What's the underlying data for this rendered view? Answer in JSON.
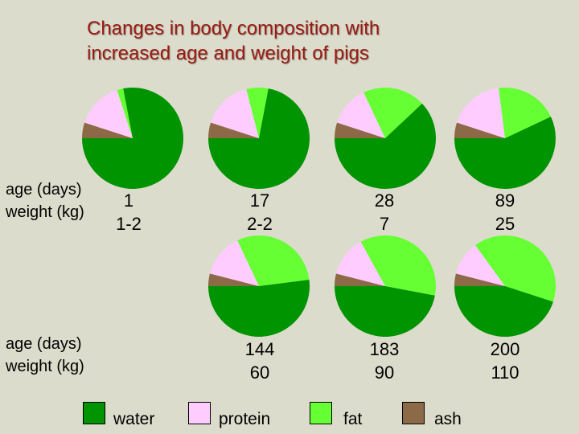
{
  "title": {
    "line1": "Changes in body composition with",
    "line2": "increased age and weight of pigs"
  },
  "row_labels": {
    "age": "age (days)",
    "weight": "weight (kg)"
  },
  "colors": {
    "water": "#009400",
    "protein": "#ffccff",
    "fat": "#66ff33",
    "ash": "#8c6a48",
    "title": "#9b1a12",
    "background": "#dcdccc"
  },
  "chart_data": {
    "type": "pie",
    "title": "Changes in body composition with increased age and weight of pigs",
    "legend": [
      "water",
      "protein",
      "fat",
      "ash"
    ],
    "legend_position": "bottom",
    "pies": [
      {
        "age_days": "1",
        "weight_kg": "1-2",
        "water": 0.78,
        "protein": 0.15,
        "fat": 0.02,
        "ash": 0.05
      },
      {
        "age_days": "17",
        "weight_kg": "2-2",
        "water": 0.72,
        "protein": 0.16,
        "fat": 0.07,
        "ash": 0.05
      },
      {
        "age_days": "28",
        "weight_kg": "7",
        "water": 0.62,
        "protein": 0.13,
        "fat": 0.2,
        "ash": 0.05
      },
      {
        "age_days": "89",
        "weight_kg": "25",
        "water": 0.57,
        "protein": 0.18,
        "fat": 0.2,
        "ash": 0.05
      },
      {
        "age_days": "144",
        "weight_kg": "60",
        "water": 0.52,
        "protein": 0.14,
        "fat": 0.3,
        "ash": 0.04
      },
      {
        "age_days": "183",
        "weight_kg": "90",
        "water": 0.47,
        "protein": 0.13,
        "fat": 0.36,
        "ash": 0.04
      },
      {
        "age_days": "200",
        "weight_kg": "110",
        "water": 0.45,
        "protein": 0.11,
        "fat": 0.4,
        "ash": 0.04
      }
    ]
  }
}
